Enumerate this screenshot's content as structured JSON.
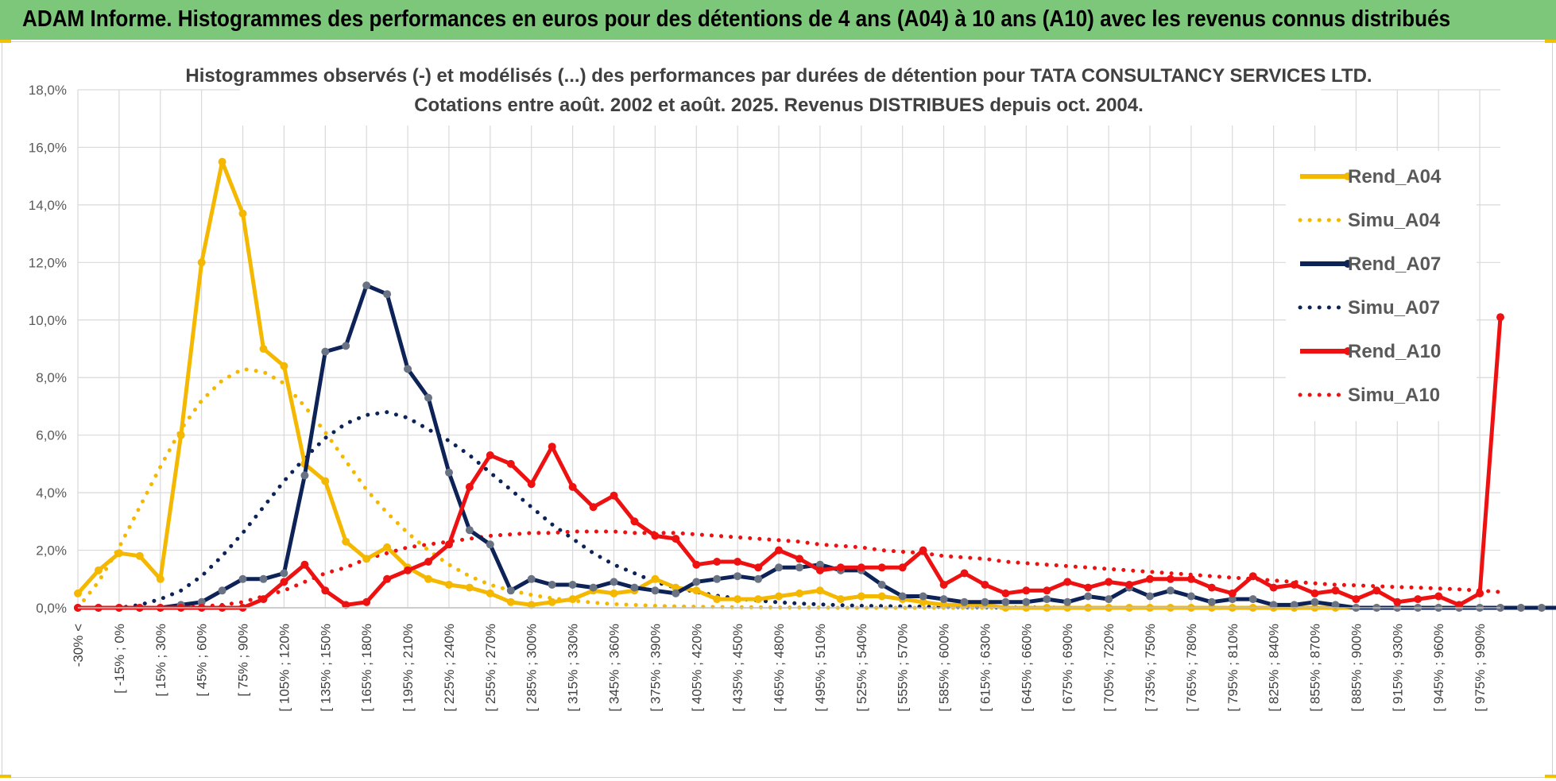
{
  "banner": {
    "title": "ADAM Informe. Histogrammes des performances en euros pour des détentions de 4 ans (A04) à 10 ans (A10) avec les revenus connus distribués"
  },
  "colors": {
    "banner": "#7cc77a",
    "a04": "#f5b800",
    "a07": "#0d2357",
    "a10": "#ee1111",
    "grid": "#d9d9d9"
  },
  "chart_data": {
    "type": "line",
    "title": "Histogrammes observés (-) et modélisés (...) des performances par durées de détention pour TATA CONSULTANCY SERVICES LTD.",
    "subtitle": "Cotations entre août. 2002 et août. 2025. Revenus DISTRIBUES depuis oct. 2004.",
    "ylim": [
      0,
      18
    ],
    "yticks": [
      "0,0%",
      "2,0%",
      "4,0%",
      "6,0%",
      "8,0%",
      "10,0%",
      "12,0%",
      "14,0%",
      "16,0%",
      "18,0%"
    ],
    "xtick_labels": [
      "-30% <",
      "[ -15% ; 0%",
      "[ 15% ; 30%",
      "[ 45% ; 60%",
      "[ 75% ; 90%",
      "[ 105% ; 120%",
      "[ 135% ; 150%",
      "[ 165% ; 180%",
      "[ 195% ; 210%",
      "[ 225% ; 240%",
      "[ 255% ; 270%",
      "[ 285% ; 300%",
      "[ 315% ; 330%",
      "[ 345% ; 360%",
      "[ 375% ; 390%",
      "[ 405% ; 420%",
      "[ 435% ; 450%",
      "[ 465% ; 480%",
      "[ 495% ; 510%",
      "[ 525% ; 540%",
      "[ 555% ; 570%",
      "[ 585% ; 600%",
      "[ 615% ; 630%",
      "[ 645% ; 660%",
      "[ 675% ; 690%",
      "[ 705% ; 720%",
      "[ 735% ; 750%",
      "[ 765% ; 780%",
      "[ 795% ; 810%",
      "[ 825% ; 840%",
      "[ 855% ; 870%",
      "[ 885% ; 900%",
      "[ 915% ; 930%",
      "[ 945% ; 960%",
      "[ 975% ; 990%"
    ],
    "legend_position": "right",
    "series": [
      {
        "name": "Rend_A04",
        "style": "solid",
        "color": "#f5b800",
        "values": [
          0.5,
          1.3,
          1.9,
          1.8,
          1.0,
          6.0,
          12.0,
          15.5,
          13.7,
          9.0,
          8.4,
          5.0,
          4.4,
          2.3,
          1.7,
          2.1,
          1.4,
          1.0,
          0.8,
          0.7,
          0.5,
          0.2,
          0.1,
          0.2,
          0.3,
          0.6,
          0.5,
          0.6,
          1.0,
          0.7,
          0.6,
          0.3,
          0.3,
          0.3,
          0.4,
          0.5,
          0.6,
          0.3,
          0.4,
          0.4,
          0.3,
          0.2,
          0.1,
          0.1,
          0.1,
          0,
          0,
          0,
          0,
          0,
          0,
          0,
          0,
          0,
          0,
          0,
          0,
          0,
          0,
          0,
          0,
          0,
          0,
          0,
          0,
          0,
          0,
          0,
          0,
          0,
          0,
          0,
          0,
          0
        ]
      },
      {
        "name": "Simu_A04",
        "style": "dotted",
        "color": "#f5b800",
        "values": [
          0,
          0.9,
          2.1,
          3.5,
          4.9,
          6.2,
          7.2,
          7.9,
          8.3,
          8.2,
          7.8,
          7.0,
          6.1,
          5.1,
          4.1,
          3.3,
          2.6,
          2.0,
          1.5,
          1.1,
          0.8,
          0.6,
          0.45,
          0.33,
          0.25,
          0.18,
          0.13,
          0.1,
          0.07,
          0.05,
          0.04,
          0.03,
          0.02,
          0.02,
          0.01,
          0.01,
          0.01,
          0,
          0,
          0,
          0,
          0,
          0,
          0,
          0,
          0,
          0,
          0,
          0,
          0,
          0,
          0,
          0,
          0,
          0,
          0,
          0,
          0,
          0,
          0,
          0,
          0,
          0,
          0,
          0,
          0,
          0,
          0,
          0,
          0,
          0,
          0,
          0,
          0
        ]
      },
      {
        "name": "Rend_A07",
        "style": "solid",
        "color": "#0d2357",
        "values": [
          0,
          0,
          0,
          0,
          0,
          0.1,
          0.2,
          0.6,
          1.0,
          1.0,
          1.2,
          4.6,
          8.9,
          9.1,
          11.2,
          10.9,
          8.3,
          7.3,
          4.7,
          2.7,
          2.2,
          0.6,
          1.0,
          0.8,
          0.8,
          0.7,
          0.9,
          0.7,
          0.6,
          0.5,
          0.9,
          1.0,
          1.1,
          1.0,
          1.4,
          1.4,
          1.5,
          1.3,
          1.3,
          0.8,
          0.4,
          0.4,
          0.3,
          0.2,
          0.2,
          0.2,
          0.2,
          0.3,
          0.2,
          0.4,
          0.3,
          0.7,
          0.4,
          0.6,
          0.4,
          0.2,
          0.3,
          0.3,
          0.1,
          0.1,
          0.2,
          0.1,
          0,
          0,
          0,
          0,
          0,
          0,
          0,
          0,
          0,
          0,
          0,
          0
        ]
      },
      {
        "name": "Simu_A07",
        "style": "dotted",
        "color": "#0d2357",
        "values": [
          0,
          0,
          0,
          0.1,
          0.3,
          0.6,
          1.1,
          1.8,
          2.6,
          3.5,
          4.4,
          5.2,
          5.9,
          6.4,
          6.7,
          6.8,
          6.6,
          6.2,
          5.8,
          5.3,
          4.7,
          4.1,
          3.5,
          2.9,
          2.4,
          1.9,
          1.5,
          1.2,
          0.9,
          0.7,
          0.55,
          0.42,
          0.32,
          0.25,
          0.19,
          0.15,
          0.12,
          0.09,
          0.07,
          0.06,
          0.05,
          0.04,
          0.03,
          0.02,
          0.02,
          0.01,
          0.01,
          0.01,
          0,
          0,
          0,
          0,
          0,
          0,
          0,
          0,
          0,
          0,
          0,
          0,
          0,
          0,
          0,
          0,
          0,
          0,
          0,
          0,
          0,
          0,
          0,
          0,
          0,
          0
        ]
      },
      {
        "name": "Rend_A10",
        "style": "solid",
        "color": "#ee1111",
        "values": [
          0,
          0,
          0,
          0,
          0,
          0,
          0,
          0,
          0,
          0.3,
          0.9,
          1.5,
          0.6,
          0.1,
          0.2,
          1.0,
          1.3,
          1.6,
          2.2,
          4.2,
          5.3,
          5.0,
          4.3,
          5.6,
          4.2,
          3.5,
          3.9,
          3.0,
          2.5,
          2.4,
          1.5,
          1.6,
          1.6,
          1.4,
          2.0,
          1.7,
          1.3,
          1.4,
          1.4,
          1.4,
          1.4,
          2.0,
          0.8,
          1.2,
          0.8,
          0.5,
          0.6,
          0.6,
          0.9,
          0.7,
          0.9,
          0.8,
          1.0,
          1.0,
          1.0,
          0.7,
          0.5,
          1.1,
          0.7,
          0.8,
          0.5,
          0.6,
          0.3,
          0.6,
          0.2,
          0.3,
          0.4,
          0.1,
          0.5,
          10.1
        ]
      },
      {
        "name": "Simu_A10",
        "style": "dotted",
        "color": "#ee1111",
        "values": [
          0,
          0,
          0,
          0,
          0,
          0,
          0.05,
          0.1,
          0.2,
          0.4,
          0.6,
          0.9,
          1.2,
          1.4,
          1.7,
          1.9,
          2.1,
          2.2,
          2.3,
          2.4,
          2.5,
          2.55,
          2.6,
          2.6,
          2.65,
          2.65,
          2.65,
          2.6,
          2.6,
          2.6,
          2.55,
          2.5,
          2.45,
          2.4,
          2.35,
          2.3,
          2.2,
          2.15,
          2.1,
          2.0,
          1.95,
          1.9,
          1.8,
          1.75,
          1.7,
          1.6,
          1.55,
          1.5,
          1.45,
          1.4,
          1.35,
          1.3,
          1.25,
          1.2,
          1.15,
          1.1,
          1.05,
          1.0,
          0.95,
          0.9,
          0.85,
          0.8,
          0.78,
          0.75,
          0.72,
          0.7,
          0.67,
          0.64,
          0.6,
          0.55
        ]
      }
    ]
  }
}
